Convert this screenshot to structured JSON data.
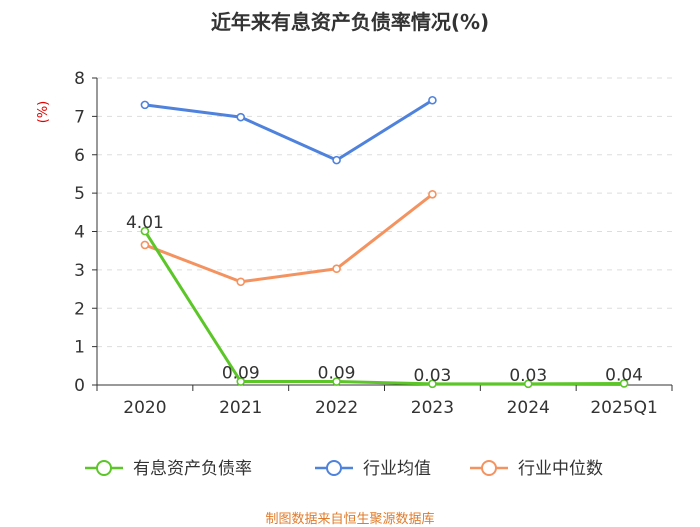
{
  "title": "近年来有息资产负债率情况(%)",
  "source": "制图数据来自恒生聚源数据库",
  "chart_data": {
    "type": "line",
    "title": "近年来有息资产负债率情况(%)",
    "ylabel": "(%)",
    "categories": [
      "2020",
      "2021",
      "2022",
      "2023",
      "2024",
      "2025Q1"
    ],
    "ylim": [
      0,
      8
    ],
    "yticks": [
      0,
      1,
      2,
      3,
      4,
      5,
      6,
      7,
      8
    ],
    "grid": true,
    "legend_position": "bottom",
    "series": [
      {
        "name": "有息资产负债率",
        "color": "#5cc629",
        "values": [
          4.01,
          0.09,
          0.09,
          0.03,
          0.03,
          0.04
        ],
        "labels": [
          "4.01",
          "0.09",
          "0.09",
          "0.03",
          "0.03",
          "0.04"
        ],
        "show_labels": true
      },
      {
        "name": "行业均值",
        "color": "#4f82dc",
        "values": [
          7.3,
          6.98,
          5.86,
          7.42,
          null,
          null
        ],
        "show_labels": false
      },
      {
        "name": "行业中位数",
        "color": "#f4935f",
        "values": [
          3.65,
          2.69,
          3.03,
          4.97,
          null,
          null
        ],
        "show_labels": false
      }
    ]
  },
  "colors": {
    "title": "#333333",
    "axis_text": "#333333",
    "ylabel": "#e00000",
    "gridline": "#dddddd",
    "axis_line": "#333333",
    "source": "#e07b2a"
  }
}
